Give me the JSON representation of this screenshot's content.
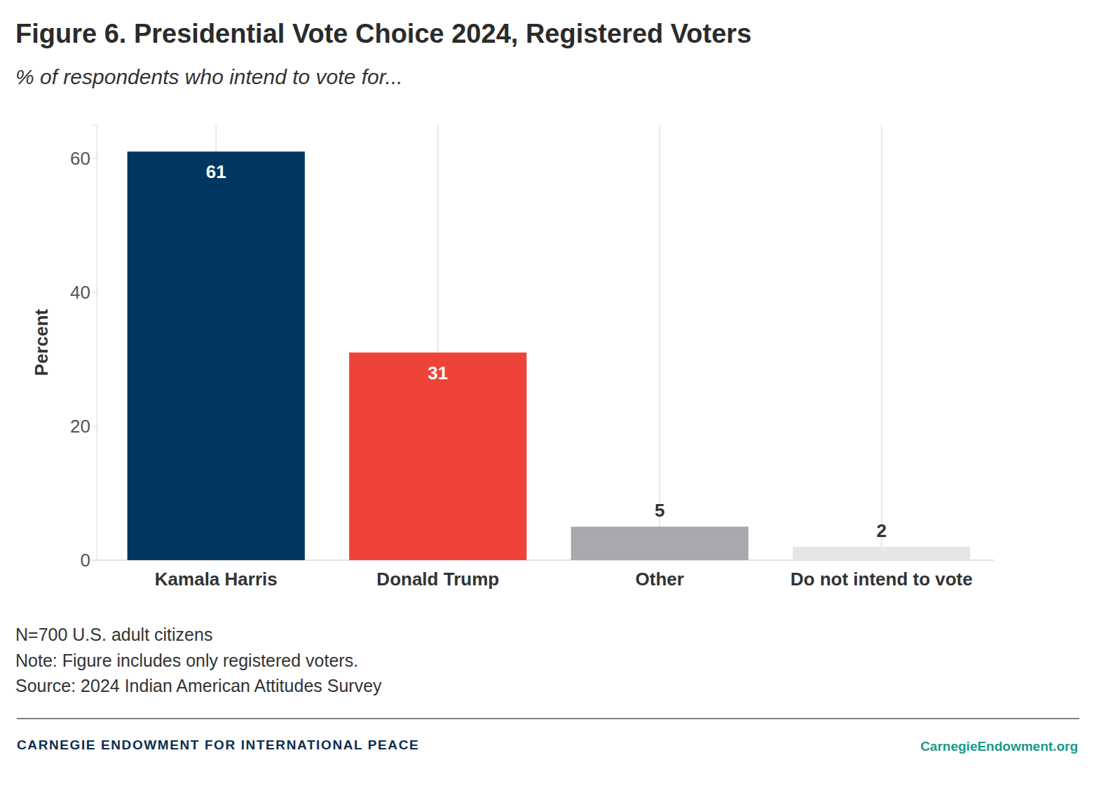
{
  "chart_data": {
    "type": "bar",
    "title": "Figure 6. Presidential Vote Choice 2024, Registered Voters",
    "subtitle": "% of respondents who intend to vote for...",
    "y_label": "Percent",
    "categories": [
      "Kamala Harris",
      "Donald Trump",
      "Other",
      "Do not intend to vote"
    ],
    "values": [
      61,
      31,
      5,
      2
    ],
    "colors": [
      "#003660",
      "#ef4239",
      "#a8a9ac",
      "#e6e6e6"
    ],
    "ylim": [
      0,
      65
    ],
    "yticks": [
      0,
      20,
      40,
      60
    ],
    "grid": true,
    "data_labels": true,
    "annotations": [
      "N=700 U.S. adult citizens",
      "Note: Figure includes only registered voters.",
      "Source: 2024 Indian American Attitudes Survey"
    ],
    "footer": {
      "left": "CARNEGIE ENDOWMENT FOR INTERNATIONAL PEACE",
      "right": "CarnegieEndowment.org"
    }
  }
}
